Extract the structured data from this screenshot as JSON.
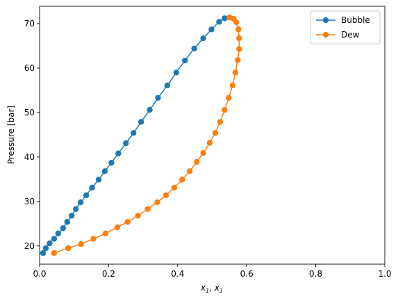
{
  "chart_data": {
    "type": "line",
    "title": "",
    "xlabel_base": "x",
    "xlabel_sub1": "1",
    "xlabel_sep": ", ",
    "ylabel": "Pressure [bar]",
    "xlim": [
      0.0,
      1.0
    ],
    "ylim": [
      15.9,
      73.9
    ],
    "xticks": [
      0.0,
      0.2,
      0.4,
      0.6,
      0.8,
      1.0
    ],
    "xtick_labels": [
      "0.0",
      "0.2",
      "0.4",
      "0.6",
      "0.8",
      "1.0"
    ],
    "yticks": [
      20,
      30,
      40,
      50,
      60,
      70
    ],
    "ytick_labels": [
      "20",
      "30",
      "40",
      "50",
      "60",
      "70"
    ],
    "grid": false,
    "legend_position": "top-right",
    "series": [
      {
        "name": "Bubble",
        "color": "#1f77b4",
        "marker": "circle",
        "points": [
          [
            0.01,
            18.4
          ],
          [
            0.018,
            19.5
          ],
          [
            0.029,
            20.6
          ],
          [
            0.042,
            21.6
          ],
          [
            0.054,
            22.8
          ],
          [
            0.068,
            24.0
          ],
          [
            0.08,
            25.4
          ],
          [
            0.093,
            26.8
          ],
          [
            0.105,
            28.3
          ],
          [
            0.119,
            29.8
          ],
          [
            0.135,
            31.4
          ],
          [
            0.152,
            33.1
          ],
          [
            0.171,
            34.9
          ],
          [
            0.189,
            36.8
          ],
          [
            0.208,
            38.7
          ],
          [
            0.228,
            40.8
          ],
          [
            0.25,
            43.1
          ],
          [
            0.272,
            45.4
          ],
          [
            0.294,
            47.9
          ],
          [
            0.319,
            50.6
          ],
          [
            0.343,
            53.3
          ],
          [
            0.37,
            56.1
          ],
          [
            0.396,
            59.0
          ],
          [
            0.421,
            61.7
          ],
          [
            0.448,
            64.4
          ],
          [
            0.474,
            66.7
          ],
          [
            0.498,
            68.7
          ],
          [
            0.52,
            70.4
          ],
          [
            0.536,
            71.2
          ],
          [
            0.55,
            71.4
          ]
        ]
      },
      {
        "name": "Dew",
        "color": "#ff7f0e",
        "marker": "circle",
        "points": [
          [
            0.042,
            18.4
          ],
          [
            0.083,
            19.5
          ],
          [
            0.12,
            20.4
          ],
          [
            0.156,
            21.6
          ],
          [
            0.191,
            22.8
          ],
          [
            0.225,
            24.2
          ],
          [
            0.255,
            25.4
          ],
          [
            0.285,
            26.8
          ],
          [
            0.313,
            28.3
          ],
          [
            0.341,
            29.8
          ],
          [
            0.366,
            31.4
          ],
          [
            0.39,
            33.1
          ],
          [
            0.413,
            34.9
          ],
          [
            0.435,
            36.8
          ],
          [
            0.455,
            38.9
          ],
          [
            0.474,
            40.9
          ],
          [
            0.493,
            43.2
          ],
          [
            0.509,
            45.4
          ],
          [
            0.523,
            47.9
          ],
          [
            0.536,
            50.6
          ],
          [
            0.548,
            53.3
          ],
          [
            0.559,
            56.1
          ],
          [
            0.567,
            59.0
          ],
          [
            0.574,
            61.8
          ],
          [
            0.578,
            64.3
          ],
          [
            0.578,
            66.7
          ],
          [
            0.576,
            68.7
          ],
          [
            0.57,
            70.3
          ],
          [
            0.562,
            71.1
          ],
          [
            0.55,
            71.4
          ]
        ]
      }
    ]
  }
}
